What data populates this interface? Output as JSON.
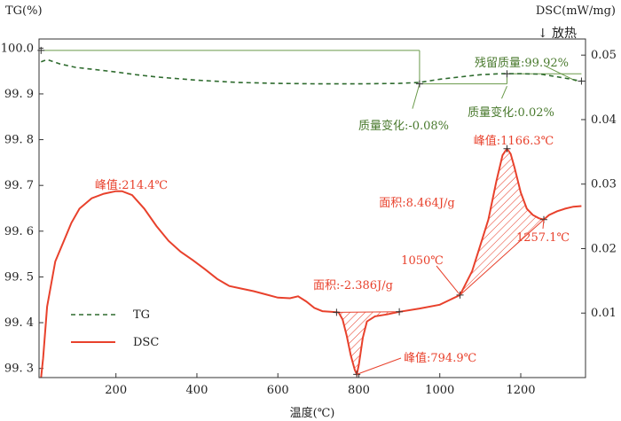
{
  "chart_data": {
    "type": "line",
    "title": "",
    "xlabel": "温度(℃)",
    "ylabel_left": "TG(%)",
    "ylabel_right": "DSC(mW/mg)",
    "exo_marker": "↓ 放热",
    "xlim": [
      10,
      1360
    ],
    "ylim_left": [
      99.28,
      100.02
    ],
    "ylim_right": [
      0.0,
      0.0525
    ],
    "x_ticks": [
      200,
      400,
      600,
      800,
      1000,
      1200
    ],
    "y_left_ticks": [
      {
        "value": 100.0,
        "label": "100.0"
      },
      {
        "value": 99.9,
        "label": "99. 9"
      },
      {
        "value": 99.8,
        "label": "99. 8"
      },
      {
        "value": 99.7,
        "label": "99. 7"
      },
      {
        "value": 99.6,
        "label": "99. 6"
      },
      {
        "value": 99.5,
        "label": "99. 5"
      },
      {
        "value": 99.4,
        "label": "99. 4"
      },
      {
        "value": 99.3,
        "label": "99. 3"
      }
    ],
    "y_right_ticks": [
      {
        "value": 0.05,
        "label": "0.05"
      },
      {
        "value": 0.04,
        "label": "0.04"
      },
      {
        "value": 0.03,
        "label": "0.03"
      },
      {
        "value": 0.02,
        "label": "0.02"
      },
      {
        "value": 0.01,
        "label": "0.01"
      }
    ],
    "grid": false,
    "legend_position": "bottom-left",
    "series": [
      {
        "name": "TG",
        "axis": "left",
        "style": "dashed",
        "color": "#2e6b2e",
        "x": [
          15,
          30,
          60,
          100,
          150,
          200,
          250,
          300,
          400,
          500,
          600,
          700,
          800,
          900,
          950,
          1000,
          1050,
          1100,
          1150,
          1200,
          1250,
          1300,
          1350
        ],
        "y": [
          99.97,
          99.975,
          99.966,
          99.958,
          99.953,
          99.948,
          99.942,
          99.937,
          99.93,
          99.925,
          99.923,
          99.922,
          99.922,
          99.923,
          99.925,
          99.932,
          99.937,
          99.942,
          99.944,
          99.944,
          99.943,
          99.936,
          99.928
        ]
      },
      {
        "name": "DSC",
        "axis": "right",
        "style": "solid",
        "color": "#e8412c",
        "x": [
          15,
          20,
          30,
          50,
          70,
          90,
          110,
          140,
          170,
          200,
          215,
          240,
          270,
          300,
          330,
          360,
          390,
          420,
          450,
          480,
          510,
          540,
          570,
          600,
          630,
          650,
          670,
          690,
          710,
          730,
          750,
          760,
          770,
          780,
          790,
          795,
          800,
          810,
          820,
          840,
          870,
          900,
          950,
          1000,
          1050,
          1080,
          1100,
          1120,
          1140,
          1155,
          1166,
          1175,
          1185,
          1200,
          1215,
          1230,
          1245,
          1257,
          1270,
          1290,
          1310,
          1330,
          1350
        ],
        "y": [
          0.0,
          0.003,
          0.011,
          0.018,
          0.021,
          0.024,
          0.0262,
          0.0278,
          0.0285,
          0.0289,
          0.0289,
          0.0283,
          0.0262,
          0.0235,
          0.0212,
          0.0195,
          0.0182,
          0.0168,
          0.0153,
          0.0142,
          0.0138,
          0.0134,
          0.0129,
          0.0124,
          0.0123,
          0.0126,
          0.0118,
          0.0108,
          0.0103,
          0.0102,
          0.0101,
          0.009,
          0.0065,
          0.0035,
          0.0012,
          0.0005,
          0.002,
          0.0062,
          0.0087,
          0.0095,
          0.0098,
          0.0102,
          0.0107,
          0.0113,
          0.0128,
          0.0165,
          0.0205,
          0.0245,
          0.0305,
          0.0345,
          0.0355,
          0.0347,
          0.0325,
          0.0287,
          0.0262,
          0.0252,
          0.0247,
          0.0245,
          0.0252,
          0.0258,
          0.0262,
          0.0265,
          0.0266
        ]
      }
    ],
    "annotations": [
      {
        "text": "峰值:214.4℃",
        "color": "#e8412c"
      },
      {
        "text": "面积:-2.386J/g",
        "color": "#e8412c"
      },
      {
        "text": "峰值:794.9℃",
        "color": "#e8412c"
      },
      {
        "text": "1050℃",
        "color": "#e8412c"
      },
      {
        "text": "面积:8.464J/g",
        "color": "#e8412c"
      },
      {
        "text": "峰值:1166.3℃",
        "color": "#e8412c"
      },
      {
        "text": "1257.1℃",
        "color": "#e8412c"
      },
      {
        "text": "残留质量:99.92%",
        "color": "#4a7a2e"
      },
      {
        "text": "质量变化:-0.08%",
        "color": "#4a7a2e"
      },
      {
        "text": "质量变化:0.02%",
        "color": "#4a7a2e"
      }
    ],
    "area_regions": [
      {
        "x_start": 745,
        "x_end": 900,
        "label": "面积:-2.386J/g"
      },
      {
        "x_start": 1050,
        "x_end": 1257,
        "label": "面积:8.464J/g"
      }
    ],
    "markers_x": [
      745,
      795,
      900,
      1050,
      1166,
      1257
    ]
  }
}
